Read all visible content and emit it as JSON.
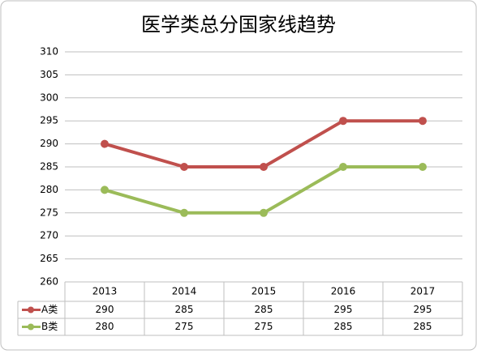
{
  "chart_data": {
    "type": "line",
    "title": "医学类总分国家线趋势",
    "categories": [
      "2013",
      "2014",
      "2015",
      "2016",
      "2017"
    ],
    "series": [
      {
        "name": "A类",
        "color": "#c0504d",
        "values": [
          290,
          285,
          285,
          295,
          295
        ]
      },
      {
        "name": "B类",
        "color": "#9bbb59",
        "values": [
          280,
          275,
          275,
          285,
          285
        ]
      }
    ],
    "ylim": [
      260,
      310
    ],
    "yticks": [
      260,
      265,
      270,
      275,
      280,
      285,
      290,
      295,
      300,
      305,
      310
    ],
    "grid": true,
    "legend": "table"
  }
}
